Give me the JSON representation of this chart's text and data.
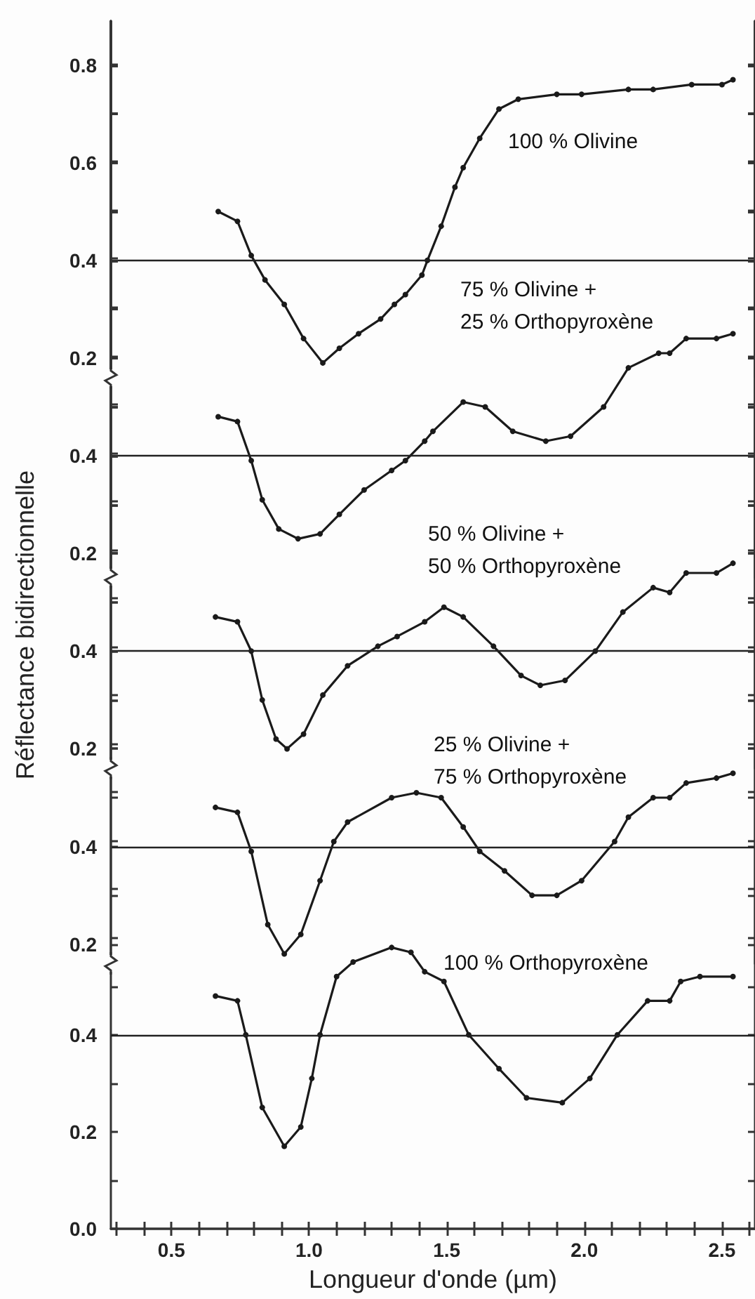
{
  "chart_data": [
    {
      "type": "line",
      "xlim": [
        0.28,
        2.62
      ],
      "ylim": [
        0.16,
        0.89
      ],
      "yticks": [
        0.2,
        0.4,
        0.6,
        0.8
      ],
      "tick_labels": "y",
      "grid": false,
      "legend": false,
      "marker": "circle",
      "line_style": "solid",
      "ref_lines": [
        {
          "axis": "y",
          "value": 0.4,
          "color": "#222222"
        }
      ],
      "series": [
        {
          "name": "100 % Olivine",
          "color": "#1a1a1a",
          "x": [
            0.67,
            0.74,
            0.79,
            0.84,
            0.91,
            0.98,
            1.05,
            1.11,
            1.18,
            1.26,
            1.31,
            1.35,
            1.41,
            1.43,
            1.48,
            1.53,
            1.56,
            1.62,
            1.69,
            1.76,
            1.9,
            1.99,
            2.16,
            2.25,
            2.39,
            2.5,
            2.54
          ],
          "values": [
            0.5,
            0.48,
            0.41,
            0.36,
            0.31,
            0.24,
            0.19,
            0.22,
            0.25,
            0.28,
            0.31,
            0.33,
            0.37,
            0.4,
            0.47,
            0.55,
            0.59,
            0.65,
            0.71,
            0.73,
            0.74,
            0.74,
            0.75,
            0.75,
            0.76,
            0.76,
            0.77
          ]
        }
      ]
    },
    {
      "type": "line",
      "xlim": [
        0.28,
        2.62
      ],
      "ylim": [
        0.15,
        1.29
      ],
      "yticks": [
        0.2,
        0.4
      ],
      "tick_labels": "y",
      "grid": false,
      "legend": false,
      "marker": "circle",
      "line_style": "solid",
      "ref_lines": [
        {
          "axis": "y",
          "value": 0.4,
          "color": "#222222"
        }
      ],
      "series": [
        {
          "name": "75 % Olivine +\n25 % Orthopyroxène",
          "color": "#1a1a1a",
          "x": [
            0.67,
            0.74,
            0.79,
            0.83,
            0.89,
            0.96,
            1.04,
            1.11,
            1.2,
            1.3,
            1.35,
            1.42,
            1.45,
            1.56,
            1.64,
            1.74,
            1.86,
            1.95,
            2.07,
            2.16,
            2.27,
            2.31,
            2.37,
            2.48,
            2.54
          ],
          "values": [
            0.48,
            0.47,
            0.39,
            0.31,
            0.25,
            0.23,
            0.24,
            0.28,
            0.33,
            0.37,
            0.39,
            0.43,
            0.45,
            0.51,
            0.5,
            0.45,
            0.43,
            0.44,
            0.5,
            0.58,
            0.61,
            0.61,
            0.64,
            0.64,
            0.65
          ]
        }
      ]
    },
    {
      "type": "line",
      "xlim": [
        0.28,
        2.62
      ],
      "ylim": [
        0.16,
        1.69
      ],
      "yticks": [
        0.2,
        0.4
      ],
      "tick_labels": "y",
      "grid": false,
      "legend": false,
      "marker": "circle",
      "line_style": "solid",
      "ref_lines": [
        {
          "axis": "y",
          "value": 0.4,
          "color": "#222222"
        }
      ],
      "series": [
        {
          "name": "50 % Olivine +\n50 % Orthopyroxène",
          "color": "#1a1a1a",
          "x": [
            0.66,
            0.74,
            0.79,
            0.83,
            0.88,
            0.92,
            0.98,
            1.05,
            1.14,
            1.25,
            1.32,
            1.42,
            1.49,
            1.56,
            1.67,
            1.77,
            1.84,
            1.93,
            2.04,
            2.14,
            2.25,
            2.31,
            2.37,
            2.48,
            2.54
          ],
          "values": [
            0.47,
            0.46,
            0.4,
            0.3,
            0.22,
            0.2,
            0.23,
            0.31,
            0.37,
            0.41,
            0.43,
            0.46,
            0.49,
            0.47,
            0.41,
            0.35,
            0.33,
            0.34,
            0.4,
            0.48,
            0.53,
            0.52,
            0.56,
            0.56,
            0.58
          ]
        }
      ]
    },
    {
      "type": "line",
      "xlim": [
        0.28,
        2.62
      ],
      "ylim": [
        0.16,
        2.09
      ],
      "yticks": [
        0.2,
        0.4
      ],
      "tick_labels": "y",
      "grid": false,
      "legend": false,
      "marker": "circle",
      "line_style": "solid",
      "ref_lines": [
        {
          "axis": "y",
          "value": 0.4,
          "color": "#222222"
        }
      ],
      "series": [
        {
          "name": "25 % Olivine +\n75 % Orthopyroxène",
          "color": "#1a1a1a",
          "x": [
            0.66,
            0.74,
            0.79,
            0.85,
            0.91,
            0.97,
            1.04,
            1.09,
            1.14,
            1.3,
            1.39,
            1.48,
            1.56,
            1.62,
            1.71,
            1.81,
            1.9,
            1.99,
            2.11,
            2.16,
            2.25,
            2.31,
            2.37,
            2.48,
            2.54
          ],
          "values": [
            0.48,
            0.47,
            0.39,
            0.24,
            0.18,
            0.22,
            0.33,
            0.41,
            0.45,
            0.5,
            0.51,
            0.5,
            0.44,
            0.39,
            0.35,
            0.3,
            0.3,
            0.33,
            0.41,
            0.46,
            0.5,
            0.5,
            0.53,
            0.54,
            0.55
          ]
        }
      ]
    },
    {
      "type": "line",
      "xlim": [
        0.28,
        2.62
      ],
      "ylim": [
        0,
        2.49
      ],
      "xticks": [
        0.5,
        {
          "value": 1,
          "label": "1.0"
        },
        1.5,
        {
          "value": 2,
          "label": "2.0"
        },
        2.5
      ],
      "yticks": [
        {
          "value": 0,
          "label": "0.0"
        },
        0.2,
        0.4
      ],
      "xlabel": "Longueur d'onde (µm)",
      "ylabel": "Réflectance bidirectionnelle",
      "grid": false,
      "legend": false,
      "marker": "circle",
      "line_style": "solid",
      "ref_lines": [
        {
          "axis": "y",
          "value": 0.4,
          "color": "#222222"
        }
      ],
      "series": [
        {
          "name": "100 % Orthopyroxène",
          "color": "#1a1a1a",
          "x": [
            0.66,
            0.74,
            0.77,
            0.83,
            0.91,
            0.97,
            1.01,
            1.04,
            1.1,
            1.16,
            1.3,
            1.37,
            1.42,
            1.49,
            1.58,
            1.69,
            1.79,
            1.92,
            2.02,
            2.12,
            2.23,
            2.31,
            2.35,
            2.42,
            2.54
          ],
          "values": [
            0.48,
            0.47,
            0.4,
            0.25,
            0.17,
            0.21,
            0.31,
            0.4,
            0.52,
            0.55,
            0.58,
            0.57,
            0.53,
            0.51,
            0.4,
            0.33,
            0.27,
            0.26,
            0.31,
            0.4,
            0.47,
            0.47,
            0.51,
            0.52,
            0.52
          ]
        }
      ]
    }
  ]
}
